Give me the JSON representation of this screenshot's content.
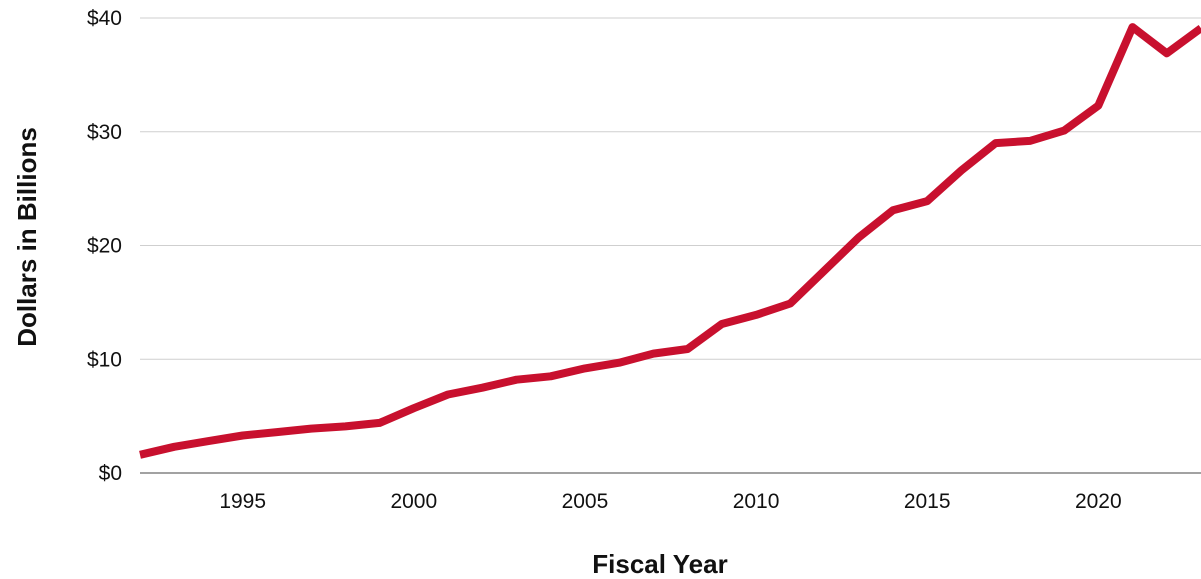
{
  "chart_data": {
    "type": "line",
    "xlabel": "Fiscal Year",
    "ylabel": "Dollars in Billions",
    "xlim": [
      1992,
      2023
    ],
    "ylim": [
      0,
      40
    ],
    "x_ticks": [
      1995,
      2000,
      2005,
      2010,
      2015,
      2020
    ],
    "y_ticks": [
      0,
      10,
      20,
      30,
      40
    ],
    "y_tick_labels": [
      "$0",
      "$10",
      "$20",
      "$30",
      "$40"
    ],
    "grid": true,
    "legend": "none",
    "series": [
      {
        "color": "#C8102E",
        "x": [
          1992,
          1993,
          1994,
          1995,
          1996,
          1997,
          1998,
          1999,
          2000,
          2001,
          2002,
          2003,
          2004,
          2005,
          2006,
          2007,
          2008,
          2009,
          2010,
          2011,
          2012,
          2013,
          2014,
          2015,
          2016,
          2017,
          2018,
          2019,
          2020,
          2021,
          2022,
          2023
        ],
        "values": [
          1.6,
          2.3,
          2.8,
          3.3,
          3.6,
          3.9,
          4.1,
          4.4,
          5.7,
          6.9,
          7.5,
          8.2,
          8.5,
          9.2,
          9.7,
          10.5,
          10.9,
          13.1,
          13.9,
          14.9,
          17.8,
          20.7,
          23.1,
          23.9,
          26.6,
          29.0,
          29.2,
          30.1,
          32.3,
          39.2,
          36.9,
          39.1
        ]
      }
    ]
  }
}
